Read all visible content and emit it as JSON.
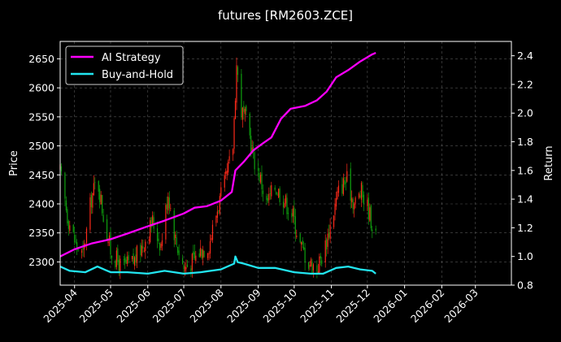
{
  "chart_data": {
    "type": "line",
    "title": "futures [RM2603.ZCE]",
    "x_axis": {
      "type": "date",
      "range": [
        "2025-03-20",
        "2026-03-31"
      ],
      "tick_labels": [
        "2025-04",
        "2025-05",
        "2025-06",
        "2025-07",
        "2025-08",
        "2025-09",
        "2025-10",
        "2025-11",
        "2025-12",
        "2026-01",
        "2026-02",
        "2026-03"
      ]
    },
    "y_left": {
      "label": "Price",
      "range": [
        2260,
        2680
      ],
      "ticks": [
        2300,
        2350,
        2400,
        2450,
        2500,
        2550,
        2600,
        2650
      ]
    },
    "y_right": {
      "label": "Return",
      "range": [
        0.8,
        2.5
      ],
      "ticks": [
        "0.8",
        "1.0",
        "1.2",
        "1.4",
        "1.6",
        "1.8",
        "2.0",
        "2.2",
        "2.4"
      ]
    },
    "grid": true,
    "legend_position": "top-left",
    "legend": [
      "AI Strategy",
      "Buy-and-Hold"
    ],
    "colors": {
      "ai_strategy": "#ff00ff",
      "buy_and_hold": "#22e5f0",
      "candle_up": "#ff2a1a",
      "candle_down": "#0fa20f",
      "grid": "#555555",
      "axes": "#ffffff"
    },
    "price_path": [
      [
        "2025-03-20",
        2455
      ],
      [
        "2025-03-26",
        2380
      ],
      [
        "2025-04-02",
        2330
      ],
      [
        "2025-04-08",
        2310
      ],
      [
        "2025-04-15",
        2410
      ],
      [
        "2025-04-20",
        2445
      ],
      [
        "2025-04-25",
        2380
      ],
      [
        "2025-05-01",
        2320
      ],
      [
        "2025-05-10",
        2290
      ],
      [
        "2025-05-20",
        2300
      ],
      [
        "2025-05-28",
        2330
      ],
      [
        "2025-06-05",
        2370
      ],
      [
        "2025-06-12",
        2330
      ],
      [
        "2025-06-18",
        2420
      ],
      [
        "2025-06-24",
        2340
      ],
      [
        "2025-07-01",
        2290
      ],
      [
        "2025-07-08",
        2300
      ],
      [
        "2025-07-15",
        2320
      ],
      [
        "2025-07-22",
        2330
      ],
      [
        "2025-07-30",
        2400
      ],
      [
        "2025-08-05",
        2440
      ],
      [
        "2025-08-11",
        2500
      ],
      [
        "2025-08-14",
        2640
      ],
      [
        "2025-08-18",
        2560
      ],
      [
        "2025-08-23",
        2540
      ],
      [
        "2025-08-28",
        2480
      ],
      [
        "2025-09-02",
        2450
      ],
      [
        "2025-09-08",
        2400
      ],
      [
        "2025-09-15",
        2430
      ],
      [
        "2025-09-22",
        2410
      ],
      [
        "2025-09-30",
        2380
      ],
      [
        "2025-10-06",
        2330
      ],
      [
        "2025-10-13",
        2300
      ],
      [
        "2025-10-20",
        2290
      ],
      [
        "2025-10-26",
        2320
      ],
      [
        "2025-11-02",
        2380
      ],
      [
        "2025-11-08",
        2430
      ],
      [
        "2025-11-14",
        2440
      ],
      [
        "2025-11-20",
        2400
      ],
      [
        "2025-11-26",
        2420
      ],
      [
        "2025-12-02",
        2390
      ],
      [
        "2025-12-08",
        2340
      ]
    ],
    "series": [
      {
        "name": "AI Strategy",
        "axis": "right",
        "points": [
          [
            "2025-03-20",
            1.0
          ],
          [
            "2025-04-01",
            1.05
          ],
          [
            "2025-04-15",
            1.09
          ],
          [
            "2025-05-01",
            1.12
          ],
          [
            "2025-05-15",
            1.16
          ],
          [
            "2025-06-01",
            1.21
          ],
          [
            "2025-06-15",
            1.25
          ],
          [
            "2025-07-01",
            1.3
          ],
          [
            "2025-07-10",
            1.34
          ],
          [
            "2025-07-20",
            1.35
          ],
          [
            "2025-08-01",
            1.39
          ],
          [
            "2025-08-10",
            1.45
          ],
          [
            "2025-08-13",
            1.6
          ],
          [
            "2025-08-20",
            1.66
          ],
          [
            "2025-08-28",
            1.74
          ],
          [
            "2025-09-05",
            1.79
          ],
          [
            "2025-09-12",
            1.83
          ],
          [
            "2025-09-20",
            1.96
          ],
          [
            "2025-09-28",
            2.03
          ],
          [
            "2025-10-10",
            2.05
          ],
          [
            "2025-10-20",
            2.09
          ],
          [
            "2025-10-28",
            2.15
          ],
          [
            "2025-11-05",
            2.25
          ],
          [
            "2025-11-15",
            2.3
          ],
          [
            "2025-11-25",
            2.36
          ],
          [
            "2025-12-05",
            2.41
          ],
          [
            "2025-12-08",
            2.42
          ]
        ]
      },
      {
        "name": "Buy-and-Hold",
        "axis": "right",
        "points": [
          [
            "2025-03-20",
            0.93
          ],
          [
            "2025-03-28",
            0.9
          ],
          [
            "2025-04-10",
            0.89
          ],
          [
            "2025-04-20",
            0.93
          ],
          [
            "2025-05-01",
            0.89
          ],
          [
            "2025-05-15",
            0.89
          ],
          [
            "2025-06-01",
            0.88
          ],
          [
            "2025-06-15",
            0.9
          ],
          [
            "2025-07-01",
            0.88
          ],
          [
            "2025-07-15",
            0.89
          ],
          [
            "2025-08-01",
            0.91
          ],
          [
            "2025-08-12",
            0.95
          ],
          [
            "2025-08-13",
            1.0
          ],
          [
            "2025-08-15",
            0.96
          ],
          [
            "2025-08-20",
            0.95
          ],
          [
            "2025-09-01",
            0.92
          ],
          [
            "2025-09-15",
            0.92
          ],
          [
            "2025-10-01",
            0.89
          ],
          [
            "2025-10-15",
            0.88
          ],
          [
            "2025-10-25",
            0.88
          ],
          [
            "2025-11-05",
            0.92
          ],
          [
            "2025-11-15",
            0.93
          ],
          [
            "2025-11-25",
            0.91
          ],
          [
            "2025-12-05",
            0.9
          ],
          [
            "2025-12-08",
            0.88
          ]
        ]
      }
    ]
  }
}
